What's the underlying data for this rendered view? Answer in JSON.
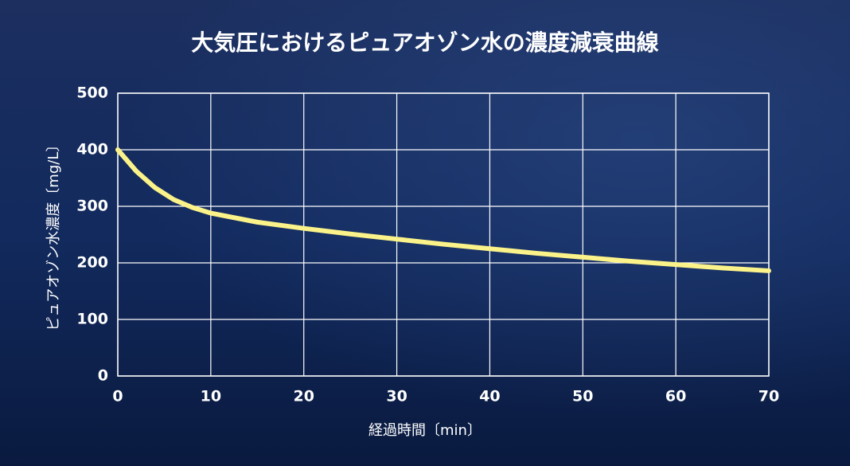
{
  "chart_data": {
    "type": "line",
    "title": "大気圧におけるピュアオゾン水の濃度減衰曲線",
    "x_label": "経過時間〔min〕",
    "y_label": "ピュアオゾン水濃度〔mg/L〕",
    "x": [
      0,
      2,
      4,
      6,
      8,
      10,
      15,
      20,
      25,
      30,
      35,
      40,
      45,
      50,
      55,
      60,
      65,
      70
    ],
    "values": [
      400,
      362,
      333,
      312,
      298,
      288,
      272,
      261,
      251,
      242,
      233,
      225,
      217,
      210,
      203,
      197,
      191,
      186
    ],
    "color": "#fbf389",
    "xlim": [
      0,
      70
    ],
    "xticks": [
      0,
      10,
      20,
      30,
      40,
      50,
      60,
      70
    ],
    "ylim": [
      0,
      500
    ],
    "yticks": [
      0,
      100,
      200,
      300,
      400,
      500
    ],
    "grid": true
  }
}
